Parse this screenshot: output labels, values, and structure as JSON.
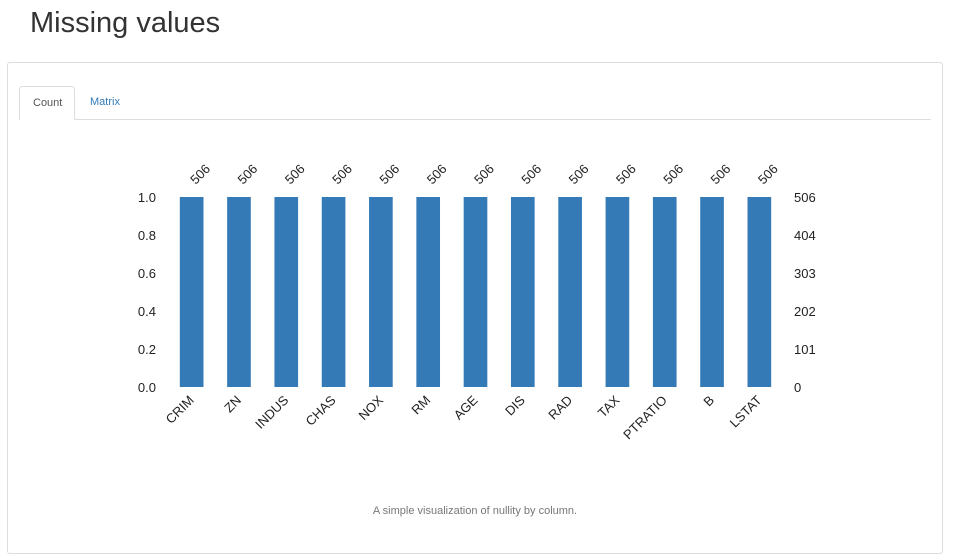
{
  "page": {
    "title": "Missing values"
  },
  "tabs": [
    {
      "label": "Count",
      "active": true
    },
    {
      "label": "Matrix",
      "active": false
    }
  ],
  "caption": "A simple visualization of nullity by column.",
  "colors": {
    "bar": "#337ab7",
    "link": "#337ab7"
  },
  "chart_data": {
    "type": "bar",
    "categories": [
      "CRIM",
      "ZN",
      "INDUS",
      "CHAS",
      "NOX",
      "RM",
      "AGE",
      "DIS",
      "RAD",
      "TAX",
      "PTRATIO",
      "B",
      "LSTAT"
    ],
    "values": [
      1.0,
      1.0,
      1.0,
      1.0,
      1.0,
      1.0,
      1.0,
      1.0,
      1.0,
      1.0,
      1.0,
      1.0,
      1.0
    ],
    "counts": [
      506,
      506,
      506,
      506,
      506,
      506,
      506,
      506,
      506,
      506,
      506,
      506,
      506
    ],
    "ylim": [
      0,
      1.0
    ],
    "yticks": [
      "0.0",
      "0.2",
      "0.4",
      "0.6",
      "0.8",
      "1.0"
    ],
    "y2ticks": [
      "0",
      "101",
      "202",
      "303",
      "404",
      "506"
    ],
    "grid": false,
    "xlabel": "",
    "ylabel": ""
  }
}
